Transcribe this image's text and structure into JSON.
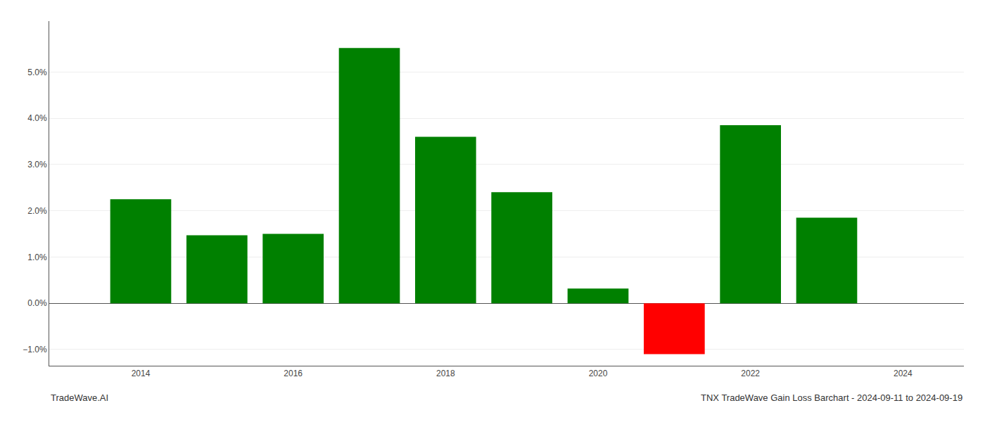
{
  "chart_data": {
    "type": "bar",
    "title": "TNX TradeWave Gain Loss Barchart - 2024-09-11 to 2024-09-19",
    "annotations": [
      "TradeWave.AI"
    ],
    "x": [
      2014,
      2015,
      2016,
      2017,
      2018,
      2019,
      2020,
      2021,
      2022,
      2023
    ],
    "values": [
      2.25,
      1.47,
      1.5,
      5.52,
      3.6,
      2.4,
      0.32,
      -1.1,
      3.85,
      1.85
    ],
    "colors": [
      "#008000",
      "#008000",
      "#008000",
      "#008000",
      "#008000",
      "#008000",
      "#008000",
      "#ff0000",
      "#008000",
      "#008000"
    ],
    "xlim": [
      2012.8,
      2024.8
    ],
    "xticks": [
      2014,
      2016,
      2018,
      2020,
      2022,
      2024
    ],
    "ylim": [
      -1.35,
      6.1
    ],
    "yticks": [
      {
        "value": -1.0,
        "label": "−1.0%"
      },
      {
        "value": 0.0,
        "label": "0.0%"
      },
      {
        "value": 1.0,
        "label": "1.0%"
      },
      {
        "value": 2.0,
        "label": "2.0%"
      },
      {
        "value": 3.0,
        "label": "3.0%"
      },
      {
        "value": 4.0,
        "label": "4.0%"
      },
      {
        "value": 5.0,
        "label": "5.0%"
      }
    ],
    "grid": true
  }
}
